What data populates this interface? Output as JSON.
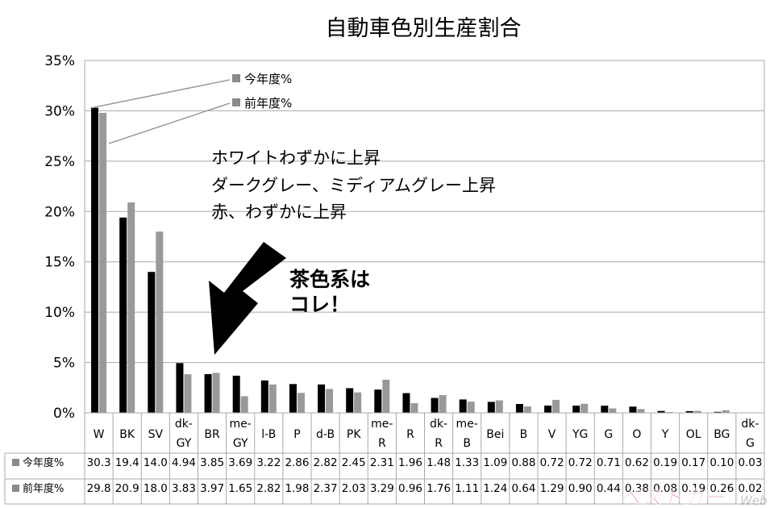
{
  "chart_data": {
    "type": "bar",
    "title": "自動車色別生産割合",
    "categories": [
      [
        "W"
      ],
      [
        "BK"
      ],
      [
        "SV"
      ],
      [
        "dk-",
        "GY"
      ],
      [
        "BR"
      ],
      [
        "me-",
        "GY"
      ],
      [
        "l-B"
      ],
      [
        "P"
      ],
      [
        "d-B"
      ],
      [
        "PK"
      ],
      [
        "me-",
        "R"
      ],
      [
        "R"
      ],
      [
        "dk-",
        "R"
      ],
      [
        "me-",
        "B"
      ],
      [
        "Bei"
      ],
      [
        "B"
      ],
      [
        "V"
      ],
      [
        "YG"
      ],
      [
        "G"
      ],
      [
        "O"
      ],
      [
        "Y"
      ],
      [
        "OL"
      ],
      [
        "BG"
      ],
      [
        "dk-",
        "G"
      ]
    ],
    "series": [
      {
        "name": "今年度%",
        "color": "#000000",
        "values": [
          30.3,
          19.4,
          14.0,
          4.94,
          3.85,
          3.69,
          3.22,
          2.86,
          2.82,
          2.45,
          2.31,
          1.96,
          1.48,
          1.33,
          1.09,
          0.88,
          0.72,
          0.72,
          0.71,
          0.62,
          0.19,
          0.17,
          0.1,
          0.03
        ],
        "labels": [
          "30.3",
          "19.4",
          "14.0",
          "4.94",
          "3.85",
          "3.69",
          "3.22",
          "2.86",
          "2.82",
          "2.45",
          "2.31",
          "1.96",
          "1.48",
          "1.33",
          "1.09",
          "0.88",
          "0.72",
          "0.72",
          "0.71",
          "0.62",
          "0.19",
          "0.17",
          "0.10",
          "0.03"
        ]
      },
      {
        "name": "前年度%",
        "color": "#999999",
        "values": [
          29.8,
          20.9,
          18.0,
          3.83,
          3.97,
          1.65,
          2.82,
          1.98,
          2.37,
          2.03,
          3.29,
          0.96,
          1.76,
          1.11,
          1.24,
          0.64,
          1.29,
          0.9,
          0.44,
          0.38,
          0.08,
          0.19,
          0.26,
          0.02
        ],
        "labels": [
          "29.8",
          "20.9",
          "18.0",
          "3.83",
          "3.97",
          "1.65",
          "2.82",
          "1.98",
          "2.37",
          "2.03",
          "3.29",
          "0.96",
          "1.76",
          "1.11",
          "1.24",
          "0.64",
          "1.29",
          "0.90",
          "0.44",
          "0.38",
          "0.08",
          "0.19",
          "0.26",
          "0.02"
        ]
      }
    ],
    "ylim": [
      0,
      35
    ],
    "yticks": [
      "0%",
      "5%",
      "10%",
      "15%",
      "20%",
      "25%",
      "30%",
      "35%"
    ],
    "grid": true,
    "legend_placement": "top-left, with leader lines to first bars",
    "table_row_labels": [
      "今年度%",
      "前年度%"
    ]
  },
  "annotations": {
    "summary_lines": [
      "ホワイトわずかに上昇",
      "ダークグレー、ミディアムグレー上昇",
      "赤、わずかに上昇"
    ],
    "callout_lines": [
      "茶色系は",
      "コレ！"
    ],
    "legend_current": "今年度%",
    "legend_previous": "前年度%",
    "watermark": "ベストカー",
    "watermark_suffix": "Web"
  }
}
